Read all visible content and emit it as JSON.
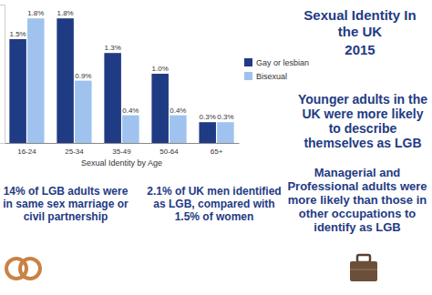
{
  "chart_data": {
    "type": "bar",
    "title": "Sexual Identity In the UK",
    "subtitle": "2015",
    "x_label": "Sexual Identity by Age",
    "categories": [
      "16-24",
      "25-34",
      "35-49",
      "50-64",
      "65+"
    ],
    "series": [
      {
        "name": "Gay or lesbian",
        "color": "#1f3b84",
        "values": [
          1.5,
          1.8,
          1.3,
          1.0,
          0.3
        ],
        "value_labels": [
          "1.5%",
          "1.8%",
          "1.3%",
          "1.0%",
          "0.3%"
        ]
      },
      {
        "name": "Bisexual",
        "color": "#9fc3ee",
        "values": [
          1.8,
          0.9,
          0.4,
          0.4,
          0.3
        ],
        "value_labels": [
          "1.8%",
          "0.9%",
          "0.4%",
          "0.4%",
          "0.3%"
        ]
      }
    ],
    "ylim": [
      0,
      2
    ],
    "tick_labels": "x",
    "data_labels": true,
    "legend": "right",
    "annotations": [
      "Younger adults in the UK were more likely to describe themselves as LGB",
      "14% of LGB adults were in same sex marriage or civil partnership",
      "2.1% of UK men identified as LGB, compared with 1.5% of women",
      "Managerial and Professional adults were more likely than those in other occupations to identify as LGB"
    ]
  }
}
